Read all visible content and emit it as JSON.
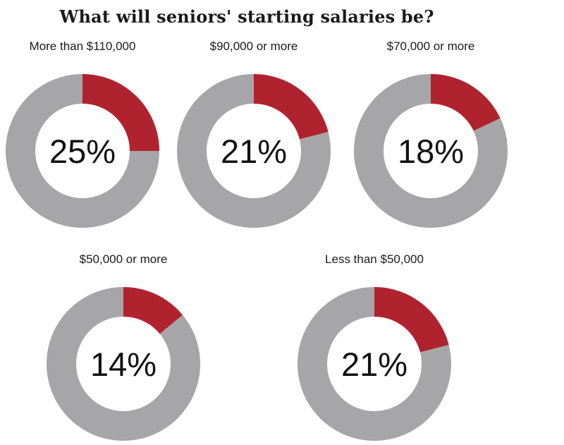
{
  "title": "What will seniors' starting salaries be?",
  "chart_data": {
    "type": "pie",
    "subtype": "donut-small-multiples",
    "title": "What will seniors' starting salaries be?",
    "unit": "percent",
    "start_angle_deg": 0,
    "direction": "clockwise",
    "colors": {
      "segment": "#b0232e",
      "remainder": "#a6a6a8",
      "text": "#121212",
      "background": "#ffffff"
    },
    "layout": {
      "rows": 2,
      "top_row_count": 3,
      "bottom_row_count": 2,
      "label_position": "above"
    },
    "charts": [
      {
        "label": "More than $110,000",
        "value": 25,
        "display": "25%"
      },
      {
        "label": "$90,000 or more",
        "value": 21,
        "display": "21%"
      },
      {
        "label": "$70,000 or more",
        "value": 18,
        "display": "18%"
      },
      {
        "label": "$50,000 or more",
        "value": 14,
        "display": "14%"
      },
      {
        "label": "Less than $50,000",
        "value": 21,
        "display": "21%"
      }
    ]
  }
}
